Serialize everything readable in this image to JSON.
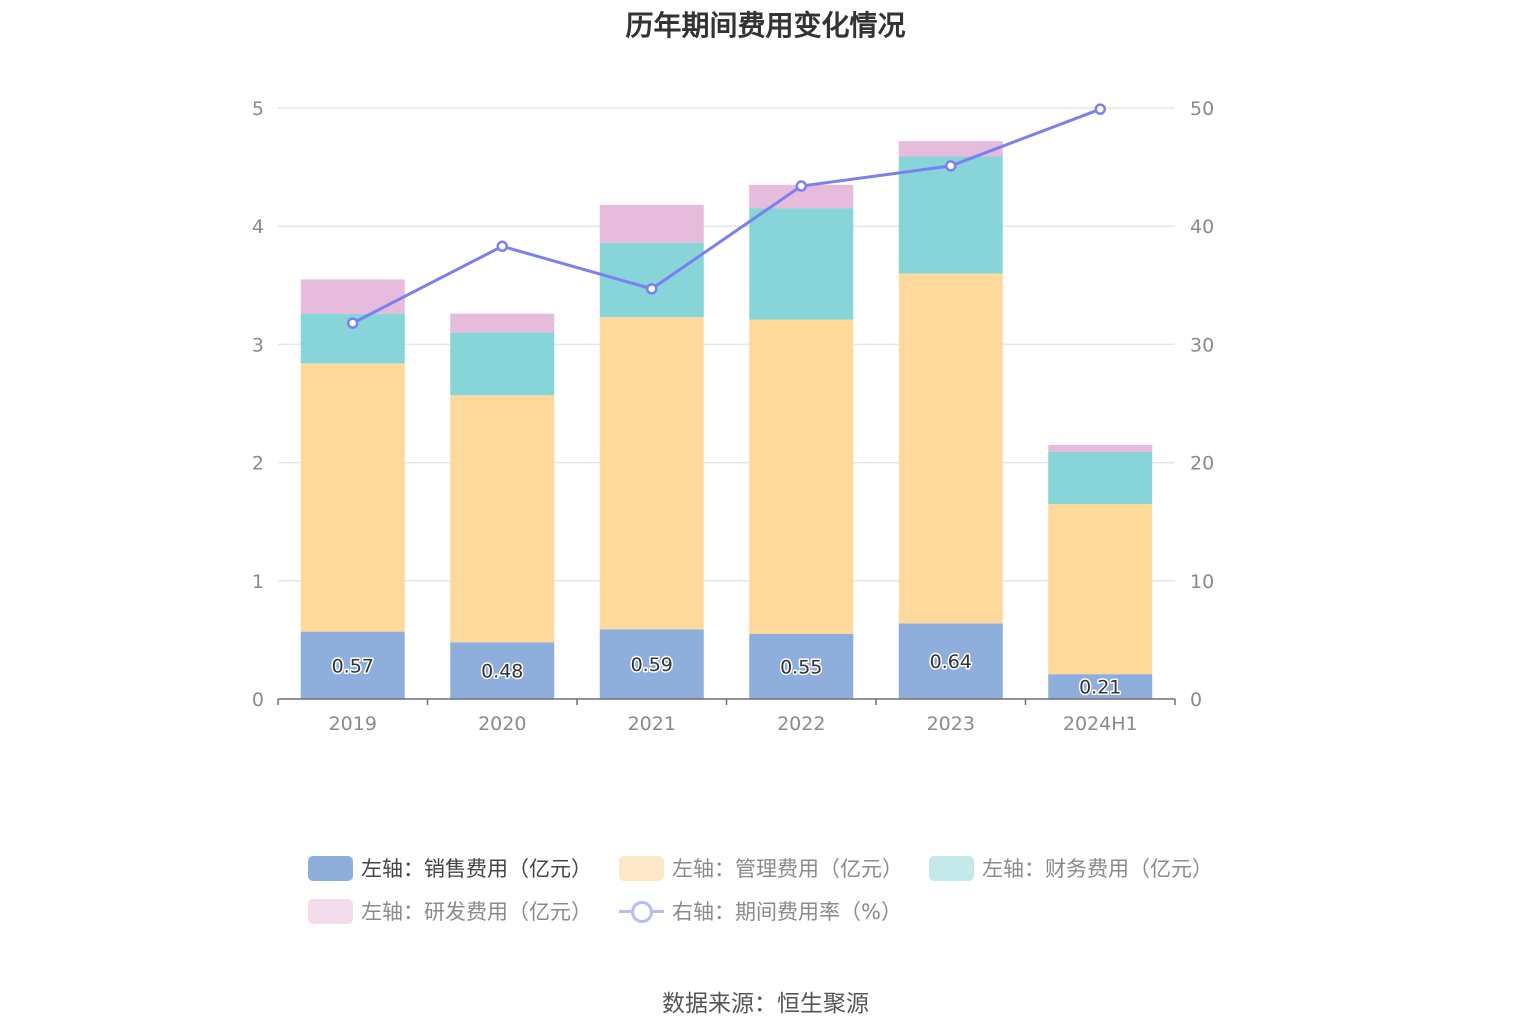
{
  "title": "历年期间费用变化情况",
  "source": "数据来源：恒生聚源",
  "chart_data": {
    "type": "bar",
    "stacked": true,
    "categories": [
      "2019",
      "2020",
      "2021",
      "2022",
      "2023",
      "2024H1"
    ],
    "y_left": {
      "ylim": [
        0,
        5
      ],
      "ticks": [
        "0",
        "1",
        "2",
        "3",
        "4",
        "5"
      ]
    },
    "y_right": {
      "ylim": [
        0,
        50
      ],
      "ticks": [
        "0",
        "10",
        "20",
        "30",
        "40",
        "50"
      ]
    },
    "grid": true,
    "legend_position": "bottom",
    "series": [
      {
        "name": "左轴：销售费用（亿元）",
        "axis": "left",
        "color": "#8eaedc",
        "values": [
          0.57,
          0.48,
          0.59,
          0.55,
          0.64,
          0.21
        ],
        "data_labels": [
          "0.57",
          "0.48",
          "0.59",
          "0.55",
          "0.64",
          "0.21"
        ]
      },
      {
        "name": "左轴：管理费用（亿元）",
        "axis": "left",
        "color": "#fed99b",
        "values": [
          2.27,
          2.09,
          2.64,
          2.66,
          2.96,
          1.44
        ]
      },
      {
        "name": "左轴：财务费用（亿元）",
        "axis": "left",
        "color": "#87d5d9",
        "values": [
          0.42,
          0.53,
          0.63,
          0.94,
          0.99,
          0.44
        ]
      },
      {
        "name": "左轴：研发费用（亿元）",
        "axis": "left",
        "color": "#e6bbdc",
        "values": [
          0.29,
          0.16,
          0.32,
          0.2,
          0.13,
          0.06
        ]
      },
      {
        "name": "右轴：期间费用率（%）",
        "axis": "right",
        "type": "line",
        "color": "#7b7ff0",
        "values": [
          31.8,
          38.3,
          34.7,
          43.4,
          45.1,
          49.9
        ]
      }
    ]
  },
  "legend": [
    {
      "label": "左轴：销售费用（亿元）",
      "color": "#8eaedc",
      "kind": "box",
      "active": true
    },
    {
      "label": "左轴：管理费用（亿元）",
      "color": "#fde7c9",
      "kind": "box",
      "active": false
    },
    {
      "label": "左轴：财务费用（亿元）",
      "color": "#c3e9ea",
      "kind": "box",
      "active": false
    },
    {
      "label": "左轴：研发费用（亿元）",
      "color": "#f3dcec",
      "kind": "box",
      "active": false
    },
    {
      "label": "右轴：期间费用率（%）",
      "color": "#b9bbf6",
      "kind": "line",
      "active": false
    }
  ]
}
